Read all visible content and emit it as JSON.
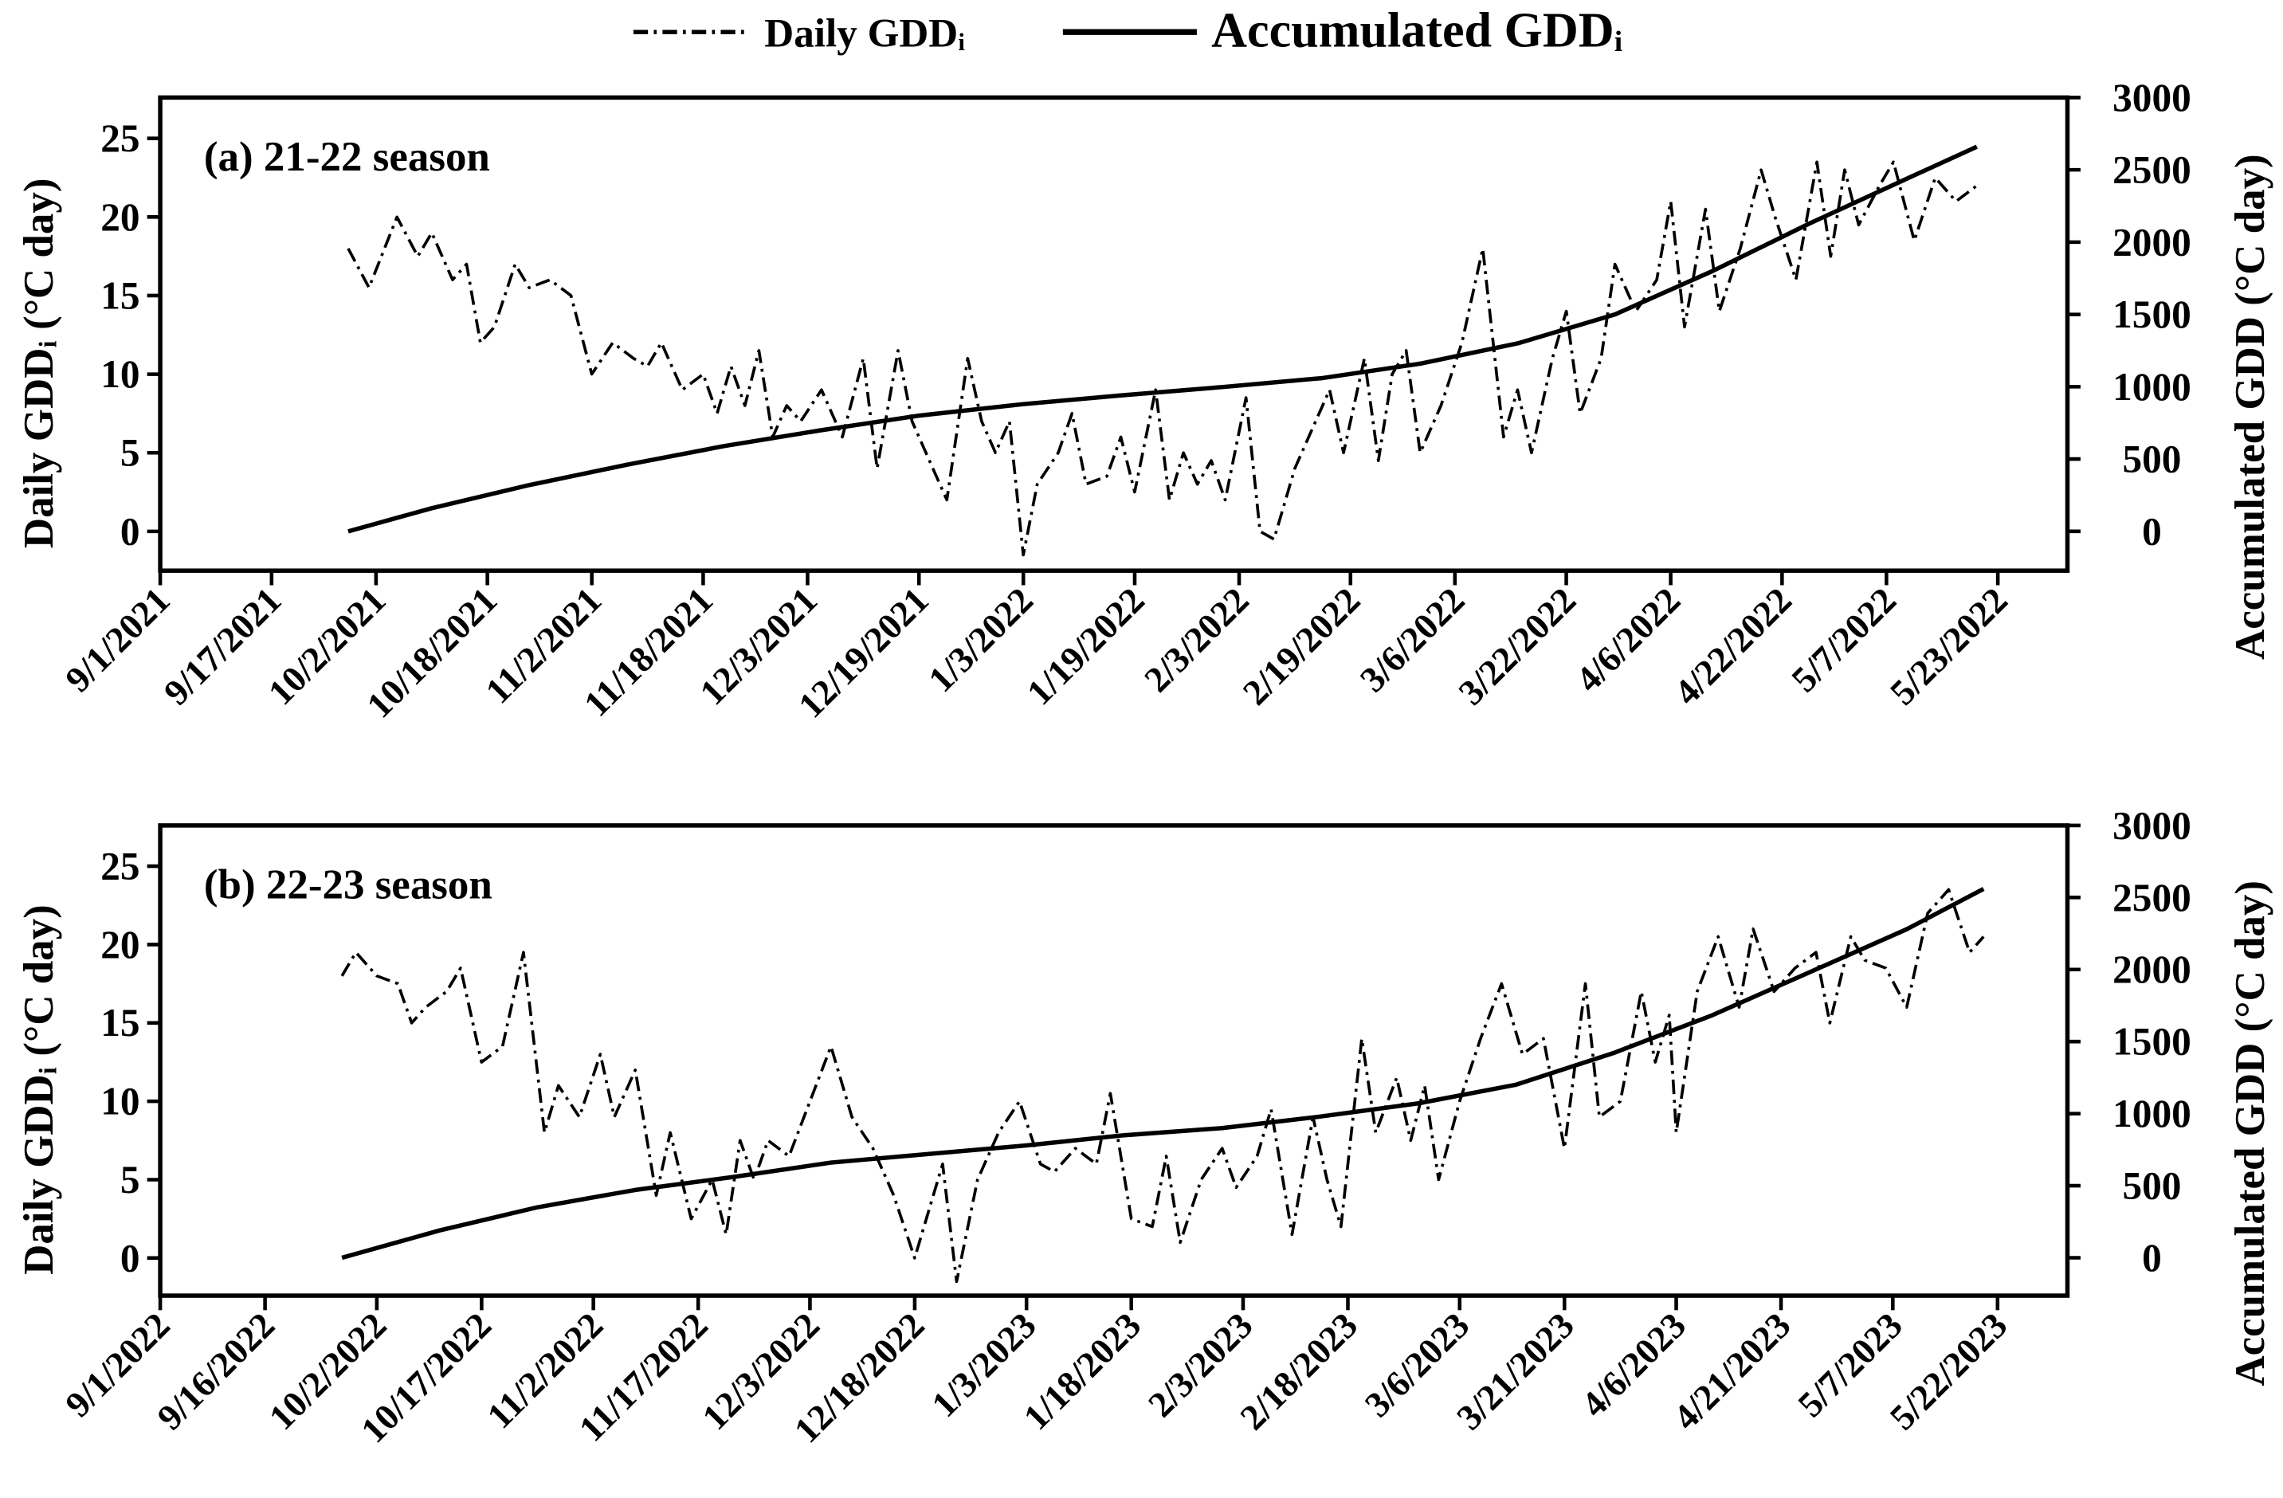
{
  "chart_data": [
    {
      "type": "line",
      "title": "(a) 21-22 season",
      "y_label": "Daily GDDᵢ (°C day)",
      "y2_label": "Accumulated GDD (°C day)",
      "xlim": [
        "2021-09-01",
        "2022-06-02"
      ],
      "xticks": [
        {
          "value": "2021-09-01",
          "label": "9/1/2021"
        },
        {
          "value": "2021-09-17",
          "label": "9/17/2021"
        },
        {
          "value": "2021-10-02",
          "label": "10/2/2021"
        },
        {
          "value": "2021-10-18",
          "label": "10/18/2021"
        },
        {
          "value": "2021-11-02",
          "label": "11/2/2021"
        },
        {
          "value": "2021-11-18",
          "label": "11/18/2021"
        },
        {
          "value": "2021-12-03",
          "label": "12/3/2021"
        },
        {
          "value": "2021-12-19",
          "label": "12/19/2021"
        },
        {
          "value": "2022-01-03",
          "label": "1/3/2022"
        },
        {
          "value": "2022-01-19",
          "label": "1/19/2022"
        },
        {
          "value": "2022-02-03",
          "label": "2/3/2022"
        },
        {
          "value": "2022-02-19",
          "label": "2/19/2022"
        },
        {
          "value": "2022-03-06",
          "label": "3/6/2022"
        },
        {
          "value": "2022-03-22",
          "label": "3/22/2022"
        },
        {
          "value": "2022-04-06",
          "label": "4/6/2022"
        },
        {
          "value": "2022-04-22",
          "label": "4/22/2022"
        },
        {
          "value": "2022-05-07",
          "label": "5/7/2022"
        },
        {
          "value": "2022-05-23",
          "label": "5/23/2022"
        }
      ],
      "ylim": [
        -2.5,
        27.6
      ],
      "yticks": [
        0,
        5,
        10,
        15,
        20,
        25
      ],
      "y2lim": [
        -272,
        3000
      ],
      "y2ticks": [
        0,
        500,
        1000,
        1500,
        2000,
        2500,
        3000
      ],
      "series": [
        {
          "name": "Daily GDDᵢ",
          "color": "#000000",
          "line_style": "dash-dot",
          "x": [
            "2021-09-28",
            "2021-10-01",
            "2021-10-05",
            "2021-10-08",
            "2021-10-10",
            "2021-10-13",
            "2021-10-15",
            "2021-10-17",
            "2021-10-19",
            "2021-10-22",
            "2021-10-24",
            "2021-10-27",
            "2021-10-30",
            "2021-11-02",
            "2021-11-05",
            "2021-11-08",
            "2021-11-10",
            "2021-11-12",
            "2021-11-15",
            "2021-11-18",
            "2021-11-20",
            "2021-11-22",
            "2021-11-24",
            "2021-11-26",
            "2021-11-28",
            "2021-11-30",
            "2021-12-02",
            "2021-12-05",
            "2021-12-08",
            "2021-12-11",
            "2021-12-13",
            "2021-12-16",
            "2021-12-18",
            "2021-12-21",
            "2021-12-23",
            "2021-12-26",
            "2021-12-28",
            "2021-12-30",
            "2022-01-01",
            "2022-01-03",
            "2022-01-05",
            "2022-01-08",
            "2022-01-10",
            "2022-01-12",
            "2022-01-15",
            "2022-01-17",
            "2022-01-19",
            "2022-01-22",
            "2022-01-24",
            "2022-01-26",
            "2022-01-28",
            "2022-01-30",
            "2022-02-01",
            "2022-02-04",
            "2022-02-06",
            "2022-02-08",
            "2022-02-11",
            "2022-02-14",
            "2022-02-16",
            "2022-02-18",
            "2022-02-21",
            "2022-02-23",
            "2022-02-25",
            "2022-02-27",
            "2022-03-01",
            "2022-03-04",
            "2022-03-07",
            "2022-03-10",
            "2022-03-13",
            "2022-03-15",
            "2022-03-17",
            "2022-03-20",
            "2022-03-22",
            "2022-03-24",
            "2022-03-27",
            "2022-03-29",
            "2022-04-01",
            "2022-04-04",
            "2022-04-06",
            "2022-04-08",
            "2022-04-11",
            "2022-04-13",
            "2022-04-16",
            "2022-04-19",
            "2022-04-21",
            "2022-04-24",
            "2022-04-27",
            "2022-04-29",
            "2022-05-01",
            "2022-05-03",
            "2022-05-06",
            "2022-05-08",
            "2022-05-11",
            "2022-05-14",
            "2022-05-17",
            "2022-05-20"
          ],
          "values": [
            18,
            15.5,
            20,
            17.5,
            19,
            16,
            17,
            12,
            13,
            17,
            15.5,
            16,
            15,
            10,
            12,
            11,
            10.5,
            12,
            9,
            10,
            7.5,
            10.5,
            8,
            11.5,
            6,
            8,
            7,
            9,
            6,
            11,
            4,
            11.5,
            7,
            4,
            2,
            11,
            7,
            5,
            7,
            -1.5,
            3,
            5,
            7.5,
            3,
            3.5,
            6,
            2.5,
            9,
            2,
            5,
            3,
            4.5,
            2,
            8.5,
            0,
            -0.5,
            4,
            7,
            9,
            5,
            11,
            4.5,
            10,
            11.5,
            5,
            8,
            12,
            18,
            6,
            9,
            5,
            11,
            14,
            7.5,
            11,
            17,
            14,
            16,
            21,
            13,
            20.5,
            14,
            18,
            23,
            20,
            16,
            23.5,
            17.5,
            23,
            19.5,
            22,
            23.5,
            18.5,
            22.5,
            21,
            22
          ]
        },
        {
          "name": "Accumulated GDDᵢ",
          "color": "#000000",
          "line_style": "solid",
          "axis": "y2",
          "x": [
            "2021-09-28",
            "2021-10-10",
            "2021-10-24",
            "2021-11-07",
            "2021-11-21",
            "2021-12-05",
            "2021-12-19",
            "2022-01-03",
            "2022-01-17",
            "2022-02-01",
            "2022-02-15",
            "2022-03-01",
            "2022-03-15",
            "2022-03-29",
            "2022-04-12",
            "2022-04-26",
            "2022-05-10",
            "2022-05-20"
          ],
          "values": [
            0,
            160,
            320,
            460,
            590,
            700,
            800,
            880,
            940,
            1000,
            1060,
            1160,
            1300,
            1500,
            1800,
            2130,
            2440,
            2660
          ]
        }
      ]
    },
    {
      "type": "line",
      "title": "(b) 22-23 season",
      "y_label": "Daily GDDᵢ (°C day)",
      "y2_label": "Accumulated GDD (°C day)",
      "xlim": [
        "2022-09-01",
        "2023-06-01"
      ],
      "xticks": [
        {
          "value": "2022-09-01",
          "label": "9/1/2022"
        },
        {
          "value": "2022-09-16",
          "label": "9/16/2022"
        },
        {
          "value": "2022-10-02",
          "label": "10/2/2022"
        },
        {
          "value": "2022-10-17",
          "label": "10/17/2022"
        },
        {
          "value": "2022-11-02",
          "label": "11/2/2022"
        },
        {
          "value": "2022-11-17",
          "label": "11/17/2022"
        },
        {
          "value": "2022-12-03",
          "label": "12/3/2022"
        },
        {
          "value": "2022-12-18",
          "label": "12/18/2022"
        },
        {
          "value": "2023-01-03",
          "label": "1/3/2023"
        },
        {
          "value": "2023-01-18",
          "label": "1/18/2023"
        },
        {
          "value": "2023-02-03",
          "label": "2/3/2023"
        },
        {
          "value": "2023-02-18",
          "label": "2/18/2023"
        },
        {
          "value": "2023-03-06",
          "label": "3/6/2023"
        },
        {
          "value": "2023-03-21",
          "label": "3/21/2023"
        },
        {
          "value": "2023-04-06",
          "label": "4/6/2023"
        },
        {
          "value": "2023-04-21",
          "label": "4/21/2023"
        },
        {
          "value": "2023-05-07",
          "label": "5/7/2023"
        },
        {
          "value": "2023-05-22",
          "label": "5/22/2023"
        }
      ],
      "ylim": [
        -2.4,
        27.6
      ],
      "yticks": [
        0,
        5,
        10,
        15,
        20,
        25
      ],
      "y2lim": [
        -263,
        3000
      ],
      "y2ticks": [
        0,
        500,
        1000,
        1500,
        2000,
        2500,
        3000
      ],
      "series": [
        {
          "name": "Daily GDDᵢ",
          "color": "#000000",
          "line_style": "dash-dot",
          "x": [
            "2022-09-27",
            "2022-09-29",
            "2022-10-02",
            "2022-10-05",
            "2022-10-07",
            "2022-10-09",
            "2022-10-12",
            "2022-10-14",
            "2022-10-17",
            "2022-10-20",
            "2022-10-23",
            "2022-10-26",
            "2022-10-28",
            "2022-10-31",
            "2022-11-03",
            "2022-11-05",
            "2022-11-08",
            "2022-11-11",
            "2022-11-13",
            "2022-11-16",
            "2022-11-19",
            "2022-11-21",
            "2022-11-23",
            "2022-11-25",
            "2022-11-27",
            "2022-11-30",
            "2022-12-03",
            "2022-12-06",
            "2022-12-09",
            "2022-12-12",
            "2022-12-15",
            "2022-12-18",
            "2022-12-20",
            "2022-12-22",
            "2022-12-24",
            "2022-12-27",
            "2022-12-30",
            "2023-01-02",
            "2023-01-05",
            "2023-01-07",
            "2023-01-10",
            "2023-01-13",
            "2023-01-15",
            "2023-01-18",
            "2023-01-21",
            "2023-01-23",
            "2023-01-25",
            "2023-01-28",
            "2023-01-31",
            "2023-02-02",
            "2023-02-05",
            "2023-02-07",
            "2023-02-10",
            "2023-02-13",
            "2023-02-15",
            "2023-02-17",
            "2023-02-20",
            "2023-02-22",
            "2023-02-25",
            "2023-02-27",
            "2023-03-01",
            "2023-03-03",
            "2023-03-06",
            "2023-03-09",
            "2023-03-12",
            "2023-03-15",
            "2023-03-18",
            "2023-03-21",
            "2023-03-24",
            "2023-03-26",
            "2023-03-29",
            "2023-04-01",
            "2023-04-03",
            "2023-04-05",
            "2023-04-06",
            "2023-04-09",
            "2023-04-12",
            "2023-04-15",
            "2023-04-17",
            "2023-04-20",
            "2023-04-23",
            "2023-04-26",
            "2023-04-28",
            "2023-05-01",
            "2023-05-03",
            "2023-05-06",
            "2023-05-09",
            "2023-05-12",
            "2023-05-15",
            "2023-05-18",
            "2023-05-20"
          ],
          "values": [
            18,
            19.5,
            18,
            17.5,
            15,
            16,
            17,
            18.5,
            12.5,
            13.5,
            19.5,
            8,
            11,
            9,
            13,
            9,
            12,
            4,
            8,
            2.5,
            5,
            1.5,
            7.5,
            5,
            7.5,
            6.5,
            10,
            13.5,
            9,
            7,
            4,
            0,
            3,
            6,
            -1.5,
            5,
            8,
            10,
            6,
            5.5,
            7,
            6,
            10.5,
            2.5,
            2,
            6.5,
            1,
            5,
            7,
            4.5,
            6.5,
            9.5,
            1.5,
            9,
            5,
            2,
            14,
            8,
            11.5,
            7.5,
            11,
            5,
            10,
            14,
            17.5,
            13,
            14,
            7,
            17.5,
            9,
            10,
            17,
            12.5,
            15.5,
            8,
            17,
            20.5,
            16,
            21,
            17,
            18.5,
            19.5,
            15,
            20.5,
            19,
            18.5,
            16,
            22,
            23.5,
            19.5,
            20.5
          ]
        },
        {
          "name": "Accumulated GDDᵢ",
          "color": "#000000",
          "line_style": "solid",
          "axis": "y2",
          "x": [
            "2022-09-27",
            "2022-10-11",
            "2022-10-25",
            "2022-11-08",
            "2022-11-22",
            "2022-12-06",
            "2022-12-20",
            "2023-01-03",
            "2023-01-17",
            "2023-01-31",
            "2023-02-14",
            "2023-02-28",
            "2023-03-14",
            "2023-03-28",
            "2023-04-11",
            "2023-04-25",
            "2023-05-09",
            "2023-05-20"
          ],
          "values": [
            0,
            190,
            350,
            470,
            560,
            660,
            720,
            780,
            850,
            900,
            980,
            1070,
            1200,
            1420,
            1680,
            1980,
            2280,
            2560
          ]
        }
      ]
    }
  ]
}
